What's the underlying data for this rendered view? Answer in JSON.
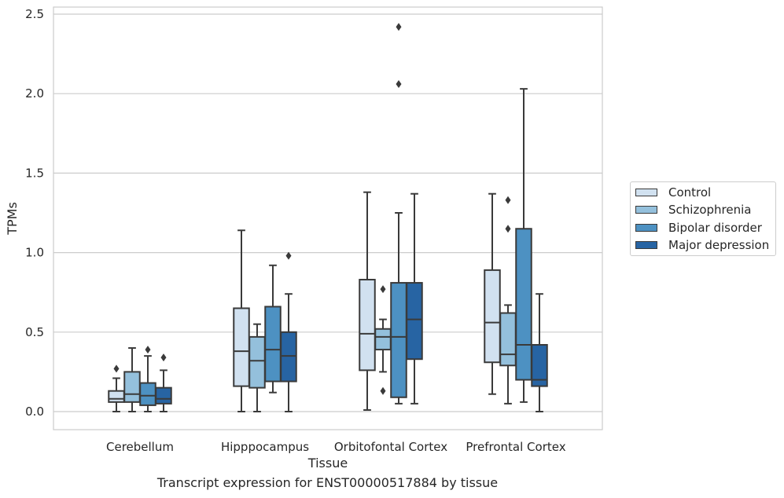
{
  "caption": "Transcript expression for ENST00000517884 by tissue",
  "chart_data": {
    "type": "boxplot",
    "xlabel": "Tissue",
    "ylabel": "TPMs",
    "ylim": [
      -0.12,
      2.55
    ],
    "yticks": [
      "0.0",
      "0.5",
      "1.0",
      "1.5",
      "2.0",
      "2.5"
    ],
    "grid": true,
    "legend_position": "right",
    "categories": [
      "Cerebellum",
      "Hipppocampus",
      "Orbitofontal Cortex",
      "Prefrontal Cortex"
    ],
    "series": [
      {
        "name": "Control",
        "color": "#d1e1f0",
        "boxes": [
          {
            "min": 0.0,
            "q1": 0.06,
            "median": 0.08,
            "q3": 0.13,
            "max": 0.21,
            "outliers": [
              0.27
            ]
          },
          {
            "min": 0.0,
            "q1": 0.16,
            "median": 0.38,
            "q3": 0.65,
            "max": 1.14,
            "outliers": []
          },
          {
            "min": 0.01,
            "q1": 0.26,
            "median": 0.49,
            "q3": 0.83,
            "max": 1.38,
            "outliers": []
          },
          {
            "min": 0.11,
            "q1": 0.31,
            "median": 0.56,
            "q3": 0.89,
            "max": 1.37,
            "outliers": []
          }
        ]
      },
      {
        "name": "Schizophrenia",
        "color": "#94c0dc",
        "boxes": [
          {
            "min": 0.0,
            "q1": 0.06,
            "median": 0.11,
            "q3": 0.25,
            "max": 0.4,
            "outliers": []
          },
          {
            "min": 0.0,
            "q1": 0.15,
            "median": 0.32,
            "q3": 0.47,
            "max": 0.55,
            "outliers": []
          },
          {
            "min": 0.25,
            "q1": 0.39,
            "median": 0.47,
            "q3": 0.52,
            "max": 0.58,
            "outliers": [
              0.77,
              0.13
            ]
          },
          {
            "min": 0.05,
            "q1": 0.29,
            "median": 0.36,
            "q3": 0.62,
            "max": 0.67,
            "outliers": [
              1.33,
              1.15
            ]
          }
        ]
      },
      {
        "name": "Bipolar disorder",
        "color": "#4d91c2",
        "boxes": [
          {
            "min": 0.0,
            "q1": 0.04,
            "median": 0.1,
            "q3": 0.18,
            "max": 0.35,
            "outliers": [
              0.39
            ]
          },
          {
            "min": 0.12,
            "q1": 0.19,
            "median": 0.39,
            "q3": 0.66,
            "max": 0.92,
            "outliers": []
          },
          {
            "min": 0.05,
            "q1": 0.09,
            "median": 0.47,
            "q3": 0.81,
            "max": 1.25,
            "outliers": [
              2.06,
              2.42
            ]
          },
          {
            "min": 0.06,
            "q1": 0.2,
            "median": 0.42,
            "q3": 1.15,
            "max": 2.03,
            "outliers": []
          }
        ]
      },
      {
        "name": "Major depression",
        "color": "#2764a3",
        "boxes": [
          {
            "min": 0.0,
            "q1": 0.05,
            "median": 0.08,
            "q3": 0.15,
            "max": 0.26,
            "outliers": [
              0.34
            ]
          },
          {
            "min": 0.0,
            "q1": 0.19,
            "median": 0.35,
            "q3": 0.5,
            "max": 0.74,
            "outliers": [
              0.98
            ]
          },
          {
            "min": 0.05,
            "q1": 0.33,
            "median": 0.58,
            "q3": 0.81,
            "max": 1.37,
            "outliers": []
          },
          {
            "min": 0.0,
            "q1": 0.16,
            "median": 0.2,
            "q3": 0.42,
            "max": 0.74,
            "outliers": []
          }
        ]
      }
    ]
  }
}
